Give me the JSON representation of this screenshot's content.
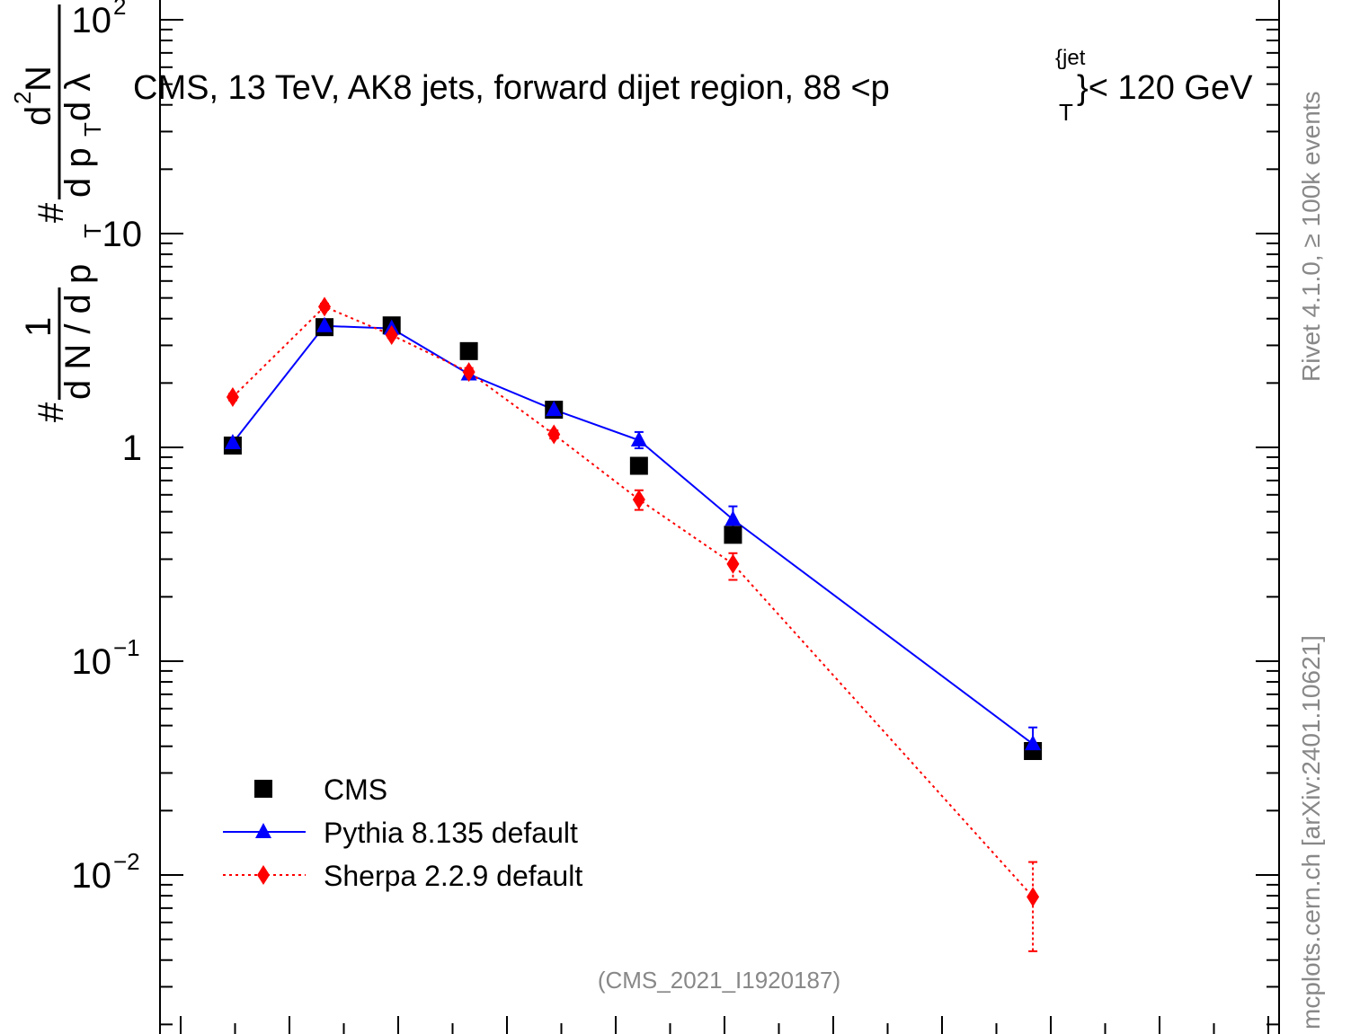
{
  "chart_data": {
    "type": "scatter",
    "title": "CMS, 13 TeV, AK8 jets, forward dijet region, 88 <p",
    "title_sup": "{jet",
    "title_sub": "T",
    "title_tail": "}< 120 GeV",
    "ylabel": {
      "prefix": "#",
      "one": "1",
      "den": "d N / d p",
      "den_sub": "T",
      "hash": "#",
      "num": "d",
      "num_sup": "2",
      "num_tail": "N",
      "den2": "d p",
      "den2_sub": "T",
      "den2_tail": " d λ"
    },
    "yscale": "log",
    "ylim": [
      0.0022,
      120
    ],
    "xlim": [
      0,
      1
    ],
    "y_tick_labels": [
      {
        "value": 100,
        "base": "10",
        "exp": "2"
      },
      {
        "value": 10,
        "base": "10",
        "exp": ""
      },
      {
        "value": 1,
        "base": "1",
        "exp": ""
      },
      {
        "value": 0.1,
        "base": "10",
        "exp": "−1"
      },
      {
        "value": 0.01,
        "base": "10",
        "exp": "−2"
      }
    ],
    "x_positions": [
      0.065,
      0.147,
      0.207,
      0.276,
      0.352,
      0.428,
      0.512,
      0.78
    ],
    "series": [
      {
        "name": "CMS",
        "color": "#000000",
        "marker": "square",
        "line": "none",
        "y": [
          1.02,
          3.65,
          3.72,
          2.82,
          1.5,
          0.82,
          0.39,
          0.038
        ]
      },
      {
        "name": "Pythia 8.135 default",
        "color": "#0000ff",
        "marker": "triangle",
        "line": "solid",
        "y": [
          1.05,
          3.7,
          3.6,
          2.2,
          1.5,
          1.08,
          0.46,
          0.041
        ],
        "err_hi": [
          1.08,
          3.78,
          3.68,
          2.28,
          1.55,
          1.18,
          0.53,
          0.049
        ],
        "err_lo": [
          1.02,
          3.62,
          3.52,
          2.12,
          1.45,
          0.99,
          0.4,
          0.035
        ]
      },
      {
        "name": "Sherpa 2.2.9 default",
        "color": "#ff0000",
        "marker": "diamond",
        "line": "dotted",
        "y": [
          1.72,
          4.55,
          3.35,
          2.25,
          1.15,
          0.57,
          0.285,
          0.0079
        ],
        "err_hi": [
          1.78,
          4.7,
          3.45,
          2.35,
          1.2,
          0.63,
          0.32,
          0.0115
        ],
        "err_lo": [
          1.66,
          4.4,
          3.25,
          2.15,
          1.1,
          0.51,
          0.24,
          0.0044
        ]
      }
    ],
    "legend_position": "bottom-left",
    "legend": [
      "CMS",
      "Pythia 8.135 default",
      "Sherpa 2.2.9 default"
    ],
    "analysis_label": "(CMS_2021_I1920187)",
    "side_label_top": "Rivet 4.1.0, ≥ 100k events",
    "side_label_bottom": "mcplots.cern.ch [arXiv:2401.10621]"
  }
}
